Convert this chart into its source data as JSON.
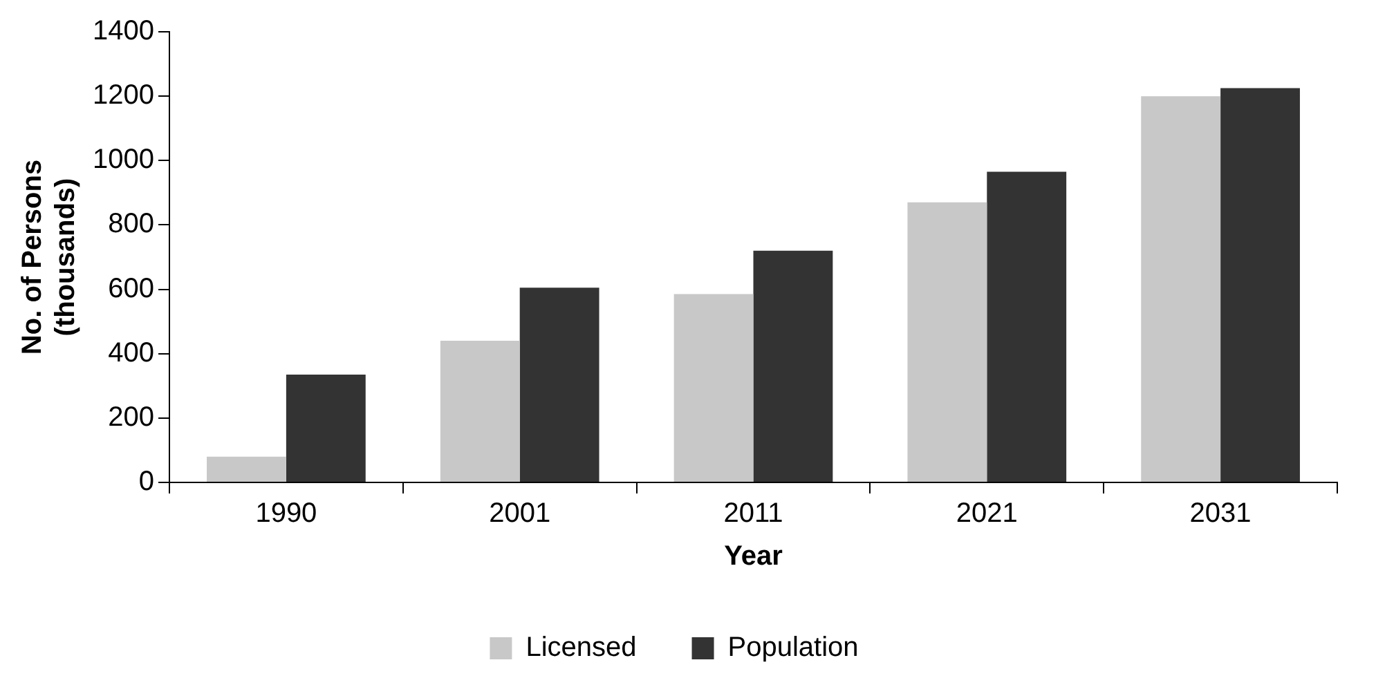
{
  "chart_data": {
    "type": "bar",
    "xlabel": "Year",
    "ylabel": "No. of Persons (thousands)",
    "categories": [
      "1990",
      "2001",
      "2011",
      "2021",
      "2031"
    ],
    "series": [
      {
        "name": "Licensed",
        "color": "#c8c8c8",
        "values": [
          80,
          440,
          585,
          870,
          1200
        ]
      },
      {
        "name": "Population",
        "color": "#333333",
        "values": [
          335,
          605,
          720,
          965,
          1225
        ]
      }
    ],
    "ylim": [
      0,
      1400
    ],
    "yticks": [
      0,
      200,
      400,
      600,
      800,
      1000,
      1200,
      1400
    ],
    "grid": false,
    "legend": "bottom"
  }
}
